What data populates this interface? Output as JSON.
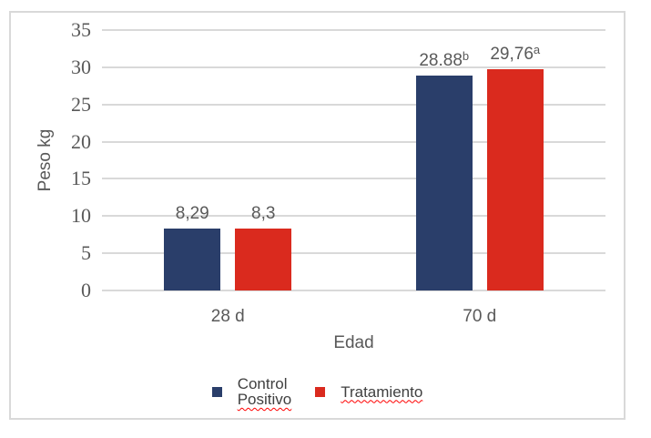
{
  "chart_data": {
    "type": "bar",
    "title": "",
    "xlabel": "Edad",
    "ylabel": "Peso kg",
    "categories": [
      "28 d",
      "70 d"
    ],
    "series": [
      {
        "name": "Control Positivo",
        "color": "#2A3E6A",
        "values": [
          8.29,
          28.88
        ],
        "data_labels": [
          {
            "text": "8,29",
            "sup": ""
          },
          {
            "text": "28.88",
            "sup": "b"
          }
        ]
      },
      {
        "name": "Tratamiento",
        "color": "#DA2A1E",
        "values": [
          8.3,
          29.76
        ],
        "data_labels": [
          {
            "text": "8,3",
            "sup": ""
          },
          {
            "text": "29,76",
            "sup": "a"
          }
        ]
      }
    ],
    "ylim": [
      0,
      35
    ],
    "yticks": [
      0,
      5,
      10,
      15,
      20,
      25,
      30,
      35
    ],
    "grid": true,
    "legend_position": "bottom"
  },
  "legend": {
    "items": [
      {
        "color": "#2A3E6A",
        "lines": [
          {
            "text": "Control",
            "squiggle": false
          },
          {
            "text": "Positivo",
            "squiggle": true
          }
        ]
      },
      {
        "color": "#DA2A1E",
        "lines": [
          {
            "text": "Tratamiento",
            "squiggle": true
          }
        ]
      }
    ]
  },
  "colors": {
    "grid": "#D9D9D9",
    "frame_border": "#D9D9D9",
    "axis_text": "#595959",
    "legend_text": "#404040",
    "squiggle": "#FF0000",
    "background": "#FFFFFF"
  }
}
